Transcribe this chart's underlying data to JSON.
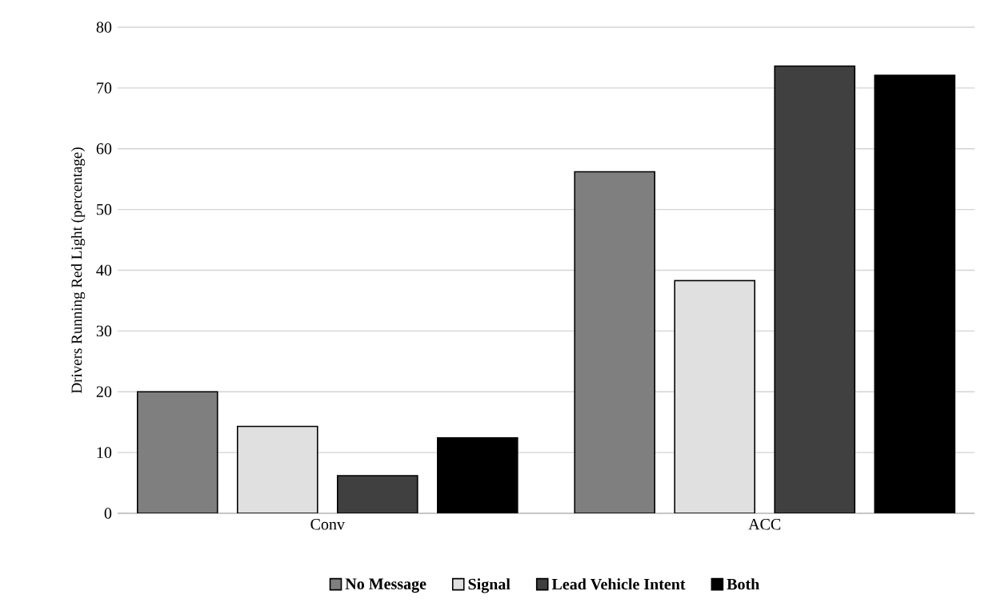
{
  "chart_data": {
    "type": "bar",
    "ylabel": "Drivers Running Red Light (percentage)",
    "categories": [
      "Conv",
      "ACC"
    ],
    "series": [
      {
        "name": "No Message",
        "color": "#7f7f7f",
        "values": [
          20.0,
          56.2
        ]
      },
      {
        "name": "Signal",
        "color": "#e0e0e0",
        "values": [
          14.3,
          38.3
        ]
      },
      {
        "name": "Lead Vehicle Intent",
        "color": "#404040",
        "values": [
          6.2,
          73.6
        ]
      },
      {
        "name": "Both",
        "color": "#000000",
        "values": [
          12.4,
          72.1
        ]
      }
    ],
    "ylim": [
      0,
      80
    ],
    "yticks": [
      0,
      10,
      20,
      30,
      40,
      50,
      60,
      70,
      80
    ],
    "grid": "y",
    "legend": "bottom"
  }
}
